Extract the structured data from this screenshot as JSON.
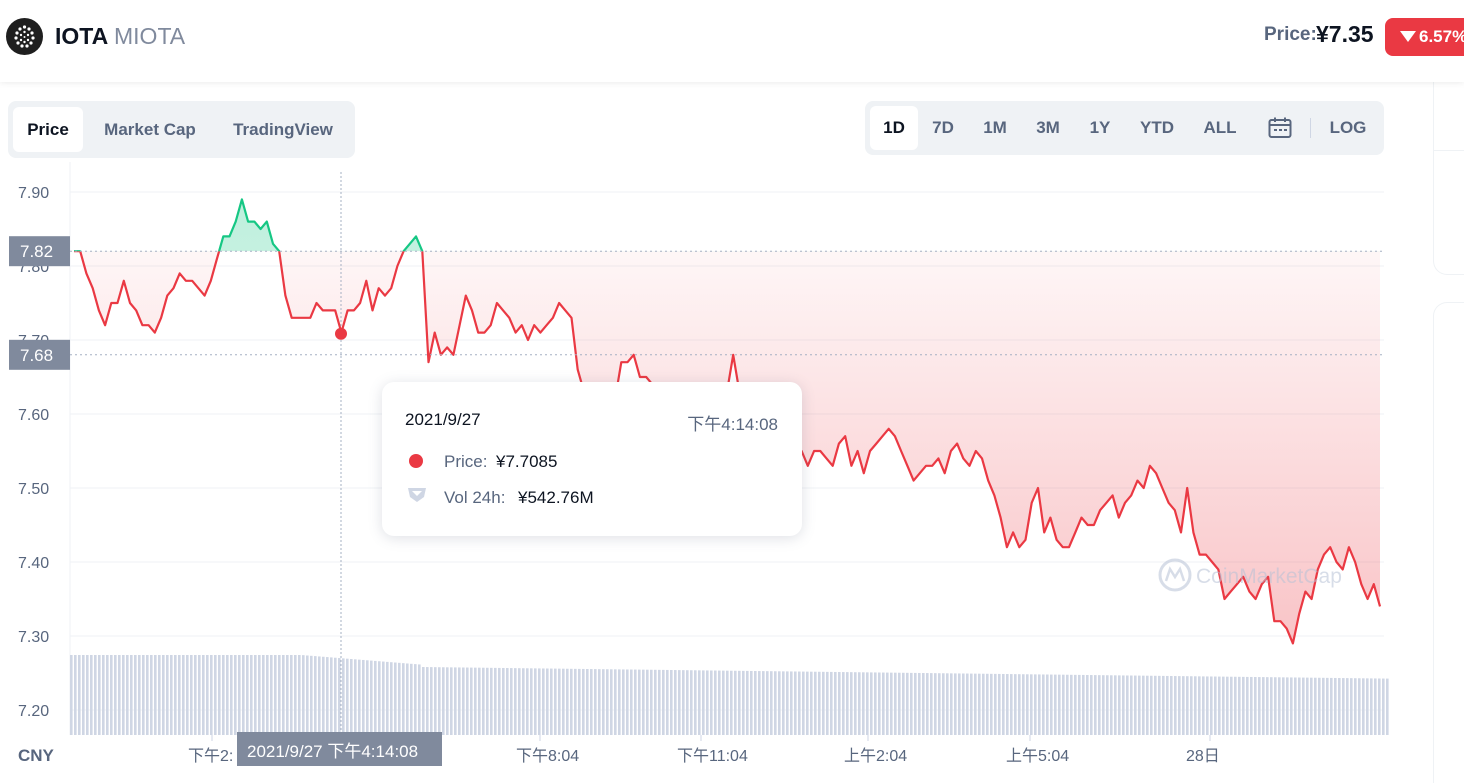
{
  "header": {
    "coin_name": "IOTA",
    "coin_symbol": "MIOTA",
    "price_label": "Price:",
    "price_value": "¥7.35",
    "change": "6.57%",
    "change_direction": "down",
    "colors": {
      "down": "#ea3943",
      "up": "#16c784"
    }
  },
  "tabs": [
    {
      "label": "Price",
      "active": true
    },
    {
      "label": "Market Cap",
      "active": false
    },
    {
      "label": "TradingView",
      "active": false
    }
  ],
  "ranges": [
    {
      "label": "1D",
      "active": true
    },
    {
      "label": "7D",
      "active": false
    },
    {
      "label": "1M",
      "active": false
    },
    {
      "label": "3M",
      "active": false
    },
    {
      "label": "1Y",
      "active": false
    },
    {
      "label": "YTD",
      "active": false
    },
    {
      "label": "ALL",
      "active": false
    }
  ],
  "calendar_icon": "calendar-icon",
  "log_label": "LOG",
  "tooltip": {
    "date": "2021/9/27",
    "time": "下午4:14:08",
    "price_label": "Price:",
    "price_value": "¥7.7085",
    "vol_label": "Vol 24h:",
    "vol_value": "¥542.76M"
  },
  "crosshair_label": "2021/9/27 下午4:14:08",
  "chart_data": {
    "type": "line",
    "currency": "CNY",
    "y_ticks": [
      "7.90",
      "7.80",
      "7.70",
      "7.60",
      "7.50",
      "7.40",
      "7.30",
      "7.20"
    ],
    "ylim": [
      7.2,
      7.9
    ],
    "reference_lines": {
      "open": "7.82",
      "crosshair": "7.68"
    },
    "x_ticks": [
      "下午2:",
      "下午8:04",
      "下午11:04",
      "上午2:04",
      "上午5:04",
      "28日"
    ],
    "watermark": "CoinMarketCap",
    "series": [
      {
        "values": [
          7.82,
          7.82,
          7.79,
          7.77,
          7.74,
          7.72,
          7.75,
          7.75,
          7.78,
          7.75,
          7.74,
          7.72,
          7.72,
          7.71,
          7.73,
          7.76,
          7.77,
          7.79,
          7.78,
          7.78,
          7.77,
          7.76,
          7.78,
          7.81,
          7.84,
          7.84,
          7.86,
          7.89,
          7.86,
          7.86,
          7.85,
          7.86,
          7.83,
          7.82,
          7.76,
          7.73,
          7.73,
          7.73,
          7.73,
          7.75,
          7.74,
          7.74,
          7.74,
          7.71,
          7.74,
          7.74,
          7.75,
          7.78,
          7.74,
          7.77,
          7.76,
          7.77,
          7.8,
          7.82,
          7.83,
          7.84,
          7.82,
          7.67,
          7.71,
          7.68,
          7.69,
          7.68,
          7.72,
          7.76,
          7.74,
          7.71,
          7.71,
          7.72,
          7.75,
          7.74,
          7.73,
          7.71,
          7.72,
          7.7,
          7.72,
          7.71,
          7.72,
          7.73,
          7.75,
          7.74,
          7.73,
          7.66,
          7.63,
          7.62,
          7.64,
          7.62,
          7.62,
          7.62,
          7.67,
          7.67,
          7.68,
          7.65,
          7.65,
          7.64,
          7.64,
          7.62,
          7.59,
          7.63,
          7.61,
          7.62,
          7.59,
          7.57,
          7.57,
          7.62,
          7.59,
          7.63,
          7.68,
          7.63,
          7.62,
          7.58,
          7.56,
          7.55,
          7.53,
          7.52,
          7.5,
          7.5,
          7.51,
          7.55,
          7.53,
          7.55,
          7.55,
          7.54,
          7.53,
          7.56,
          7.57,
          7.53,
          7.55,
          7.52,
          7.55,
          7.56,
          7.57,
          7.58,
          7.57,
          7.55,
          7.53,
          7.51,
          7.52,
          7.53,
          7.53,
          7.54,
          7.52,
          7.55,
          7.56,
          7.54,
          7.53,
          7.55,
          7.54,
          7.51,
          7.49,
          7.46,
          7.42,
          7.44,
          7.42,
          7.43,
          7.48,
          7.5,
          7.44,
          7.46,
          7.43,
          7.42,
          7.42,
          7.44,
          7.46,
          7.45,
          7.45,
          7.47,
          7.48,
          7.49,
          7.46,
          7.48,
          7.49,
          7.51,
          7.5,
          7.53,
          7.52,
          7.5,
          7.48,
          7.47,
          7.44,
          7.5,
          7.44,
          7.41,
          7.41,
          7.4,
          7.39,
          7.35,
          7.36,
          7.37,
          7.38,
          7.36,
          7.35,
          7.37,
          7.38,
          7.32,
          7.32,
          7.31,
          7.29,
          7.33,
          7.36,
          7.35,
          7.39,
          7.41,
          7.42,
          7.4,
          7.39,
          7.42,
          7.4,
          7.37,
          7.35,
          7.37,
          7.34
        ]
      }
    ]
  }
}
